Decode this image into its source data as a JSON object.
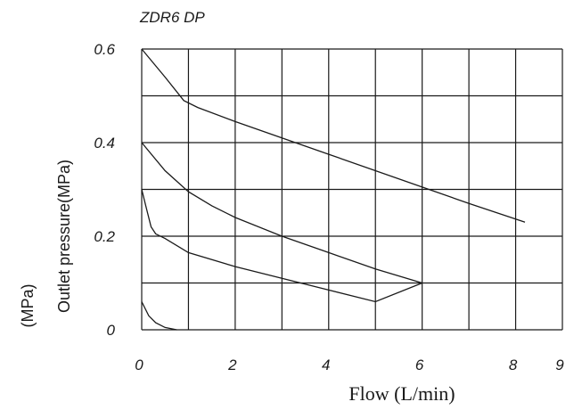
{
  "chart_data": {
    "type": "line",
    "title": "ZDR6 DP",
    "xlabel": "Flow (L/min)",
    "ylabel": "Outlet pressure(MPa)",
    "ylabel_unit": "(MPa)",
    "xlim": [
      0,
      9
    ],
    "ylim": [
      0,
      0.6
    ],
    "x_ticks": [
      "0",
      "2",
      "4",
      "6",
      "8",
      "9"
    ],
    "y_ticks": [
      "0",
      "0.2",
      "0.4",
      "0.6"
    ],
    "grid": true,
    "series": [
      {
        "x": [
          0,
          0.15,
          0.3,
          0.5,
          0.75
        ],
        "y": [
          0.06,
          0.03,
          0.015,
          0.005,
          0.0
        ]
      },
      {
        "x": [
          0,
          0.1,
          0.2,
          0.3,
          0.5,
          1,
          2,
          3,
          4,
          5,
          6
        ],
        "y": [
          0.3,
          0.26,
          0.22,
          0.205,
          0.195,
          0.165,
          0.135,
          0.11,
          0.085,
          0.06,
          0.1
        ]
      },
      {
        "x": [
          0,
          0.5,
          1,
          1.5,
          2,
          3,
          4,
          5,
          6
        ],
        "y": [
          0.4,
          0.34,
          0.295,
          0.265,
          0.24,
          0.2,
          0.165,
          0.13,
          0.1
        ]
      },
      {
        "x": [
          0,
          0.5,
          0.9,
          1.2,
          2,
          3,
          4,
          5,
          6,
          7,
          8.2
        ],
        "y": [
          0.6,
          0.54,
          0.49,
          0.475,
          0.445,
          0.41,
          0.375,
          0.34,
          0.305,
          0.27,
          0.23
        ]
      }
    ]
  }
}
